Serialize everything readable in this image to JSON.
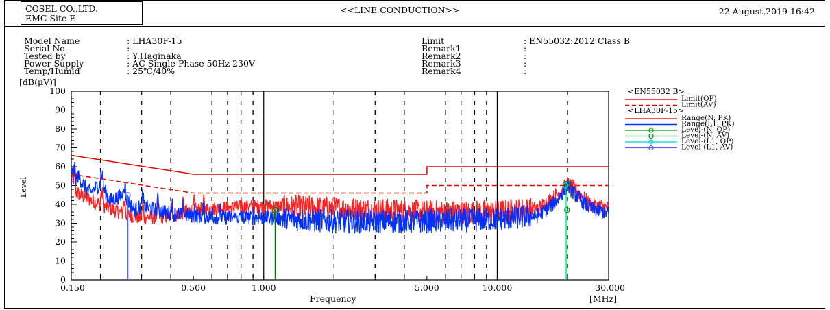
{
  "header": {
    "company": "COSEL CO.,LTD.",
    "site": "EMC Site E",
    "title": "<<LINE CONDUCTION>>",
    "date": "22 August,2019 16:42"
  },
  "info_left": [
    {
      "key": "Model Name",
      "value": ": LHA30F-15"
    },
    {
      "key": "Serial No.",
      "value": ":"
    },
    {
      "key": "Tested by",
      "value": ": Y.Haginaka"
    },
    {
      "key": "Power Supply",
      "value": ": AC Single-Phase 50Hz 230V"
    },
    {
      "key": "Temp/Humid",
      "value": ": 25℃/40%"
    }
  ],
  "info_right": [
    {
      "key": "Limit",
      "value": ": EN55032:2012 Class B"
    },
    {
      "key": "Remark1",
      "value": ":"
    },
    {
      "key": "Remark2",
      "value": ":"
    },
    {
      "key": "Remark3",
      "value": ":"
    },
    {
      "key": "Remark4",
      "value": ":"
    }
  ],
  "colors": {
    "limit": "#e00000",
    "range_n": "#ff2020",
    "range_l1": "#0030ff",
    "level_n_qp": "#00a000",
    "level_n_av": "#008000",
    "level_l1_qp": "#00d8d8",
    "level_l1_av": "#6060ff"
  },
  "chart_data": {
    "type": "line",
    "xscale": "log",
    "xlim": [
      0.15,
      30
    ],
    "ylim": [
      0,
      100
    ],
    "xlabel": "Frequency",
    "xunit": "[MHz]",
    "ylabel": "Level",
    "yunit": "[dB(μV)]",
    "xticks": [
      {
        "value": 0.15,
        "label": "0.150"
      },
      {
        "value": 0.5,
        "label": "0.500"
      },
      {
        "value": 1,
        "label": "1.000"
      },
      {
        "value": 5,
        "label": "5.000"
      },
      {
        "value": 10,
        "label": "10.000"
      },
      {
        "value": 30,
        "label": "30.000"
      }
    ],
    "yticks": [
      0,
      10,
      20,
      30,
      40,
      50,
      60,
      70,
      80,
      90,
      100
    ],
    "minor_gridlines_x": [
      0.2,
      0.3,
      0.4,
      0.6,
      0.7,
      0.8,
      0.9,
      2,
      3,
      4,
      6,
      7,
      8,
      9,
      20
    ],
    "legend": {
      "groups": [
        {
          "title": "<EN55032 B>",
          "entries": [
            {
              "label": "Limit(QP)",
              "style": "solid",
              "color": "#e00000"
            },
            {
              "label": "Limit(AV)",
              "style": "dashed",
              "color": "#e00000"
            }
          ]
        },
        {
          "title": "<LHA30F-15>",
          "entries": [
            {
              "label": "Range(N, PK)",
              "style": "solid",
              "color": "#ff2020"
            },
            {
              "label": "Range(L1, PK)",
              "style": "solid",
              "color": "#0030ff"
            },
            {
              "label": "Level-(N, QP)",
              "style": "marker",
              "color": "#00a000"
            },
            {
              "label": "Level-(N, AV)",
              "style": "marker",
              "color": "#008000"
            },
            {
              "label": "Level-(L1, QP)",
              "style": "marker",
              "color": "#00d8d8"
            },
            {
              "label": "Level-(L1, AV)",
              "style": "marker",
              "color": "#6060ff"
            }
          ]
        }
      ]
    },
    "series": [
      {
        "name": "Limit(QP)",
        "style": "solid",
        "x": [
          0.15,
          0.5,
          0.5,
          5,
          5,
          30
        ],
        "y": [
          66,
          56,
          56,
          56,
          60,
          60
        ]
      },
      {
        "name": "Limit(AV)",
        "style": "dashed",
        "x": [
          0.15,
          0.5,
          0.5,
          5,
          5,
          30
        ],
        "y": [
          56,
          46,
          46,
          46,
          50,
          50
        ]
      },
      {
        "name": "Range(N, PK)",
        "x": [
          0.15,
          0.17,
          0.2,
          0.25,
          0.3,
          0.4,
          0.5,
          0.7,
          1,
          2,
          5,
          10,
          15,
          18,
          20,
          22,
          25,
          30
        ],
        "y": [
          48,
          44,
          40,
          35,
          33,
          34,
          37,
          38,
          39,
          38,
          36,
          36,
          38,
          45,
          51,
          47,
          40,
          38
        ]
      },
      {
        "name": "Range(L1, PK)",
        "x": [
          0.15,
          0.16,
          0.18,
          0.2,
          0.22,
          0.25,
          0.28,
          0.3,
          0.4,
          0.5,
          0.7,
          1,
          2,
          5,
          10,
          15,
          18,
          20,
          22,
          25,
          30
        ],
        "y": [
          50,
          55,
          46,
          51,
          42,
          45,
          37,
          39,
          35,
          34,
          33,
          33,
          31,
          31,
          32,
          34,
          42,
          50,
          44,
          38,
          35
        ]
      },
      {
        "name": "Level-(N, QP)",
        "points": [
          {
            "x": 1.12,
            "y": 37
          },
          {
            "x": 19.9,
            "y": 51
          }
        ]
      },
      {
        "name": "Level-(N, AV)",
        "points": [
          {
            "x": 1.12,
            "y": 37
          },
          {
            "x": 19.9,
            "y": 37
          }
        ]
      },
      {
        "name": "Level-(L1, QP)",
        "points": [
          {
            "x": 0.262,
            "y": 45
          },
          {
            "x": 19.6,
            "y": 50
          }
        ]
      },
      {
        "name": "Level-(L1, AV)",
        "points": [
          {
            "x": 0.262,
            "y": 45
          }
        ]
      }
    ]
  }
}
